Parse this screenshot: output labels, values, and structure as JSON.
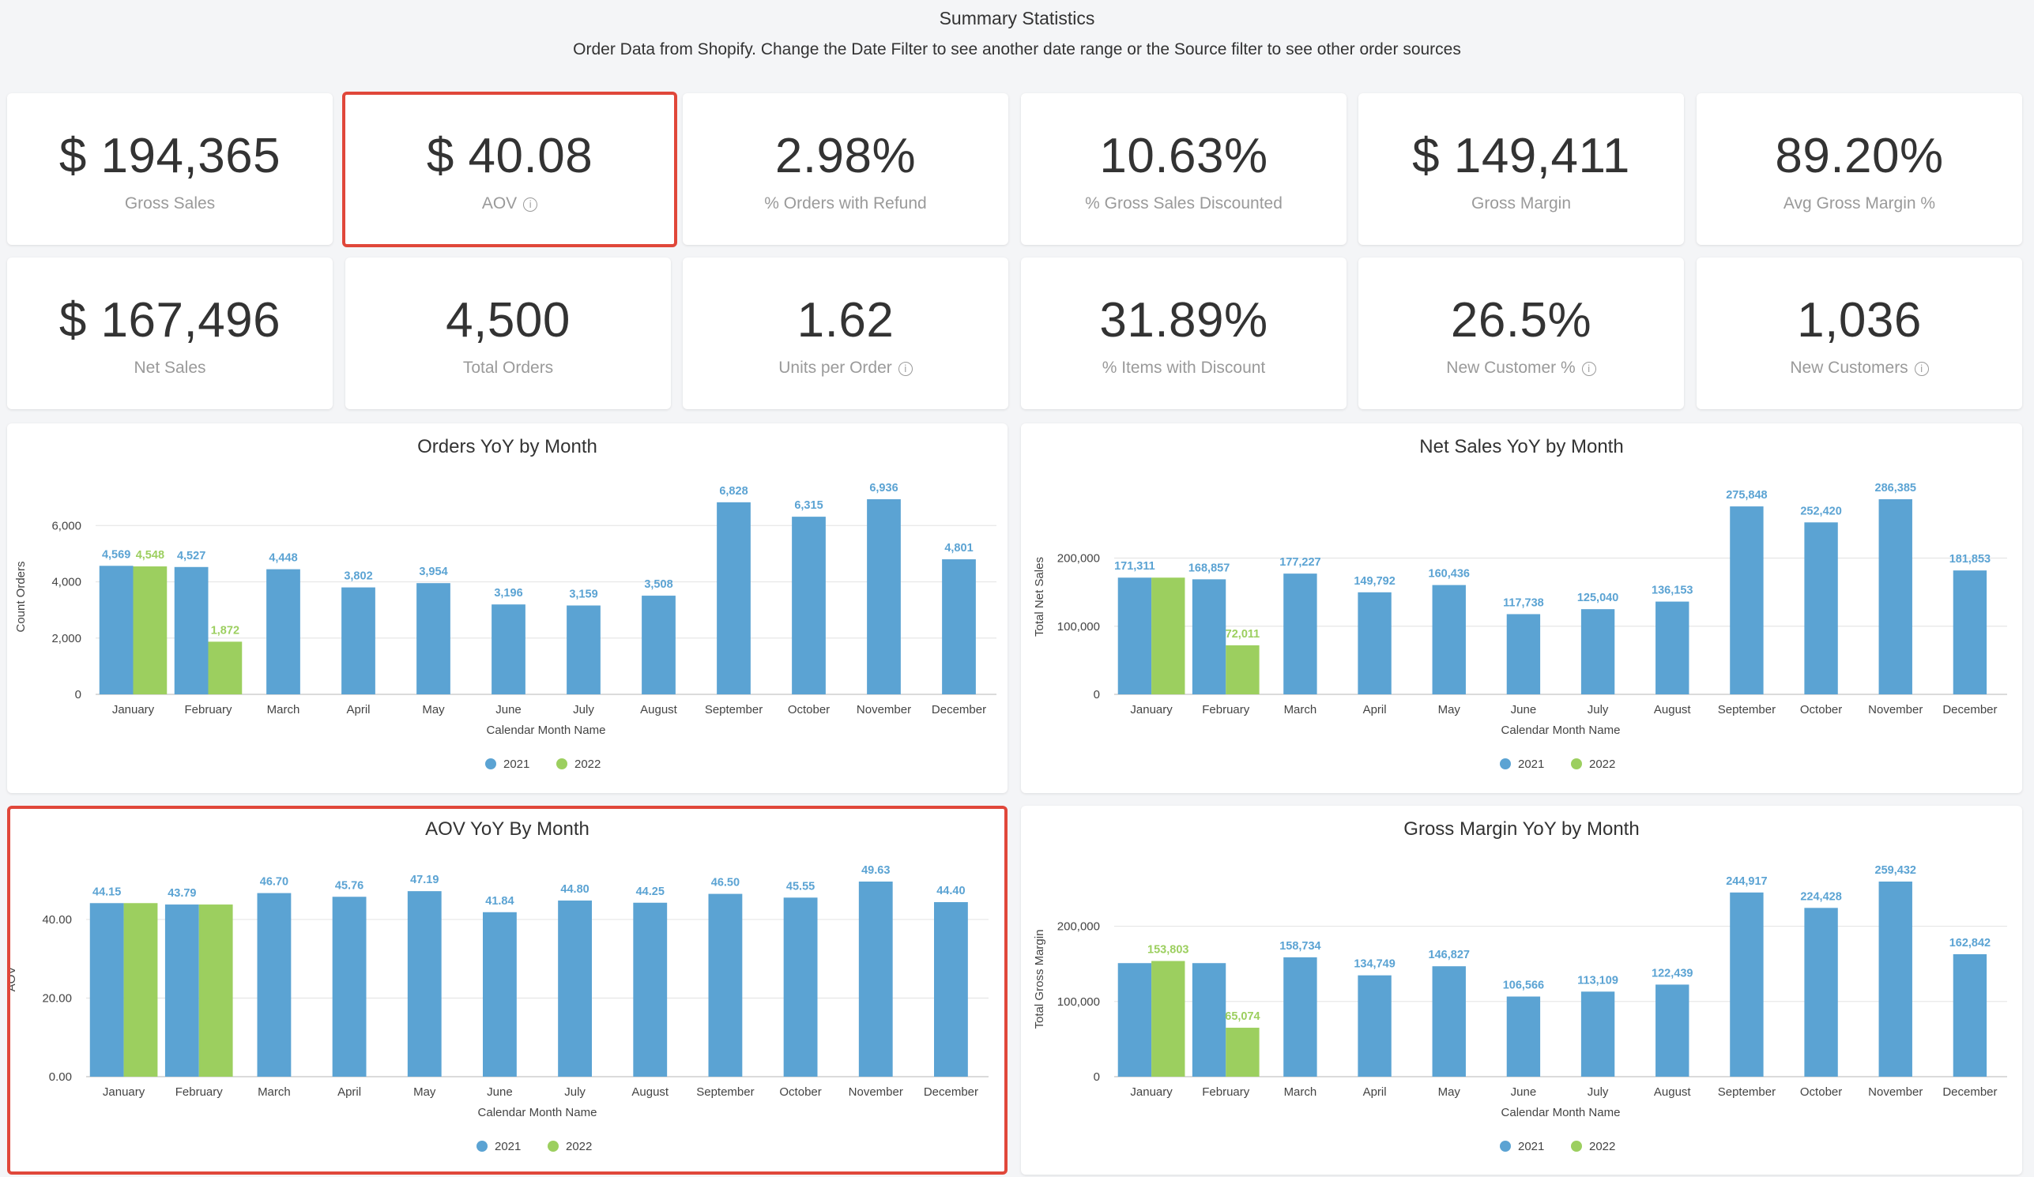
{
  "header": {
    "title": "Summary Statistics",
    "subtitle": "Order Data from Shopify. Change the Date Filter to see another date range or the Source filter to see other order sources"
  },
  "kpis_row1": [
    {
      "value": "$ 194,365",
      "label": "Gross Sales",
      "info": false
    },
    {
      "value": "$ 40.08",
      "label": "AOV",
      "info": true
    },
    {
      "value": "2.98%",
      "label": "% Orders with Refund",
      "info": false
    },
    {
      "value": "10.63%",
      "label": "% Gross Sales Discounted",
      "info": false
    },
    {
      "value": "$ 149,411",
      "label": "Gross Margin",
      "info": false
    },
    {
      "value": "89.20%",
      "label": "Avg Gross Margin %",
      "info": false
    }
  ],
  "kpis_row2": [
    {
      "value": "$ 167,496",
      "label": "Net Sales",
      "info": false
    },
    {
      "value": "4,500",
      "label": "Total Orders",
      "info": false
    },
    {
      "value": "1.62",
      "label": "Units per Order",
      "info": true
    },
    {
      "value": "31.89%",
      "label": "% Items with Discount",
      "info": false
    },
    {
      "value": "26.5%",
      "label": "New Customer %",
      "info": true
    },
    {
      "value": "1,036",
      "label": "New Customers",
      "info": true
    }
  ],
  "icons": {
    "info": "info-icon"
  },
  "colors": {
    "series_2021": "#5ba3d3",
    "series_2022": "#9ccf5f",
    "highlight": "#e0473a"
  },
  "chart_data": [
    {
      "type": "bar",
      "title": "Orders YoY by Month",
      "xlabel": "Calendar Month Name",
      "ylabel": "Count Orders",
      "ylim": [
        0,
        6936
      ],
      "yticks": [
        0,
        2000,
        4000,
        6000
      ],
      "ytick_labels": [
        "0",
        "2,000",
        "4,000",
        "6,000"
      ],
      "grid": true,
      "legend": "bottom",
      "categories": [
        "January",
        "February",
        "March",
        "April",
        "May",
        "June",
        "July",
        "August",
        "September",
        "October",
        "November",
        "December"
      ],
      "series": [
        {
          "name": "2021",
          "values": [
            4569,
            4527,
            4448,
            3802,
            3954,
            3196,
            3159,
            3508,
            6828,
            6315,
            6936,
            4801
          ],
          "labels": [
            "4,569",
            "4,527",
            "4,448",
            "3,802",
            "3,954",
            "3,196",
            "3,159",
            "3,508",
            "6,828",
            "6,315",
            "6,936",
            "4,801"
          ]
        },
        {
          "name": "2022",
          "values": [
            4548,
            1872,
            null,
            null,
            null,
            null,
            null,
            null,
            null,
            null,
            null,
            null
          ],
          "labels": [
            "4,548",
            "1,872",
            null,
            null,
            null,
            null,
            null,
            null,
            null,
            null,
            null,
            null
          ]
        }
      ]
    },
    {
      "type": "bar",
      "title": "Net Sales YoY by Month",
      "xlabel": "Calendar Month Name",
      "ylabel": "Total Net Sales",
      "ylim": [
        0,
        286385
      ],
      "yticks": [
        0,
        100000,
        200000
      ],
      "ytick_labels": [
        "0",
        "100,000",
        "200,000"
      ],
      "grid": true,
      "legend": "bottom",
      "categories": [
        "January",
        "February",
        "March",
        "April",
        "May",
        "June",
        "July",
        "August",
        "September",
        "October",
        "November",
        "December"
      ],
      "series": [
        {
          "name": "2021",
          "values": [
            171311,
            168857,
            177227,
            149792,
            160436,
            117738,
            125040,
            136153,
            275848,
            252420,
            286385,
            181853
          ],
          "labels": [
            "171,311",
            "168,857",
            "177,227",
            "149,792",
            "160,436",
            "117,738",
            "125,040",
            "136,153",
            "275,848",
            "252,420",
            "286,385",
            "181,853"
          ]
        },
        {
          "name": "2022",
          "values": [
            171311,
            72011,
            null,
            null,
            null,
            null,
            null,
            null,
            null,
            null,
            null,
            null
          ],
          "labels": [
            null,
            "72,011",
            null,
            null,
            null,
            null,
            null,
            null,
            null,
            null,
            null,
            null
          ]
        }
      ]
    },
    {
      "type": "bar",
      "title": "AOV YoY By Month",
      "xlabel": "Calendar Month Name",
      "ylabel": "AOV",
      "ylim": [
        0,
        49.63
      ],
      "yticks": [
        0,
        20,
        40
      ],
      "ytick_labels": [
        "0.00",
        "20.00",
        "40.00"
      ],
      "grid": true,
      "legend": "bottom",
      "highlighted": true,
      "categories": [
        "January",
        "February",
        "March",
        "April",
        "May",
        "June",
        "July",
        "August",
        "September",
        "October",
        "November",
        "December"
      ],
      "series": [
        {
          "name": "2021",
          "values": [
            44.15,
            43.79,
            46.7,
            45.76,
            47.19,
            41.84,
            44.8,
            44.25,
            46.5,
            45.55,
            49.63,
            44.4
          ],
          "labels": [
            "44.15",
            "43.79",
            "46.70",
            "45.76",
            "47.19",
            "41.84",
            "44.80",
            "44.25",
            "46.50",
            "45.55",
            "49.63",
            "44.40"
          ]
        },
        {
          "name": "2022",
          "values": [
            44.15,
            43.79,
            null,
            null,
            null,
            null,
            null,
            null,
            null,
            null,
            null,
            null
          ],
          "labels": [
            null,
            null,
            null,
            null,
            null,
            null,
            null,
            null,
            null,
            null,
            null,
            null
          ]
        }
      ]
    },
    {
      "type": "bar",
      "title": "Gross Margin YoY by Month",
      "xlabel": "Calendar Month Name",
      "ylabel": "Total Gross Margin",
      "ylim": [
        0,
        259432
      ],
      "yticks": [
        0,
        100000,
        200000
      ],
      "ytick_labels": [
        "0",
        "100,000",
        "200,000"
      ],
      "grid": true,
      "legend": "bottom",
      "categories": [
        "January",
        "February",
        "March",
        "April",
        "May",
        "June",
        "July",
        "August",
        "September",
        "October",
        "November",
        "December"
      ],
      "series": [
        {
          "name": "2021",
          "values": [
            151000,
            151000,
            158734,
            134749,
            146827,
            106566,
            113109,
            122439,
            244917,
            224428,
            259432,
            162842
          ],
          "labels": [
            null,
            null,
            "158,734",
            "134,749",
            "146,827",
            "106,566",
            "113,109",
            "122,439",
            "244,917",
            "224,428",
            "259,432",
            "162,842"
          ]
        },
        {
          "name": "2022",
          "values": [
            153803,
            65074,
            null,
            null,
            null,
            null,
            null,
            null,
            null,
            null,
            null,
            null
          ],
          "labels": [
            "153,803",
            "65,074",
            null,
            null,
            null,
            null,
            null,
            null,
            null,
            null,
            null,
            null
          ]
        }
      ]
    }
  ]
}
